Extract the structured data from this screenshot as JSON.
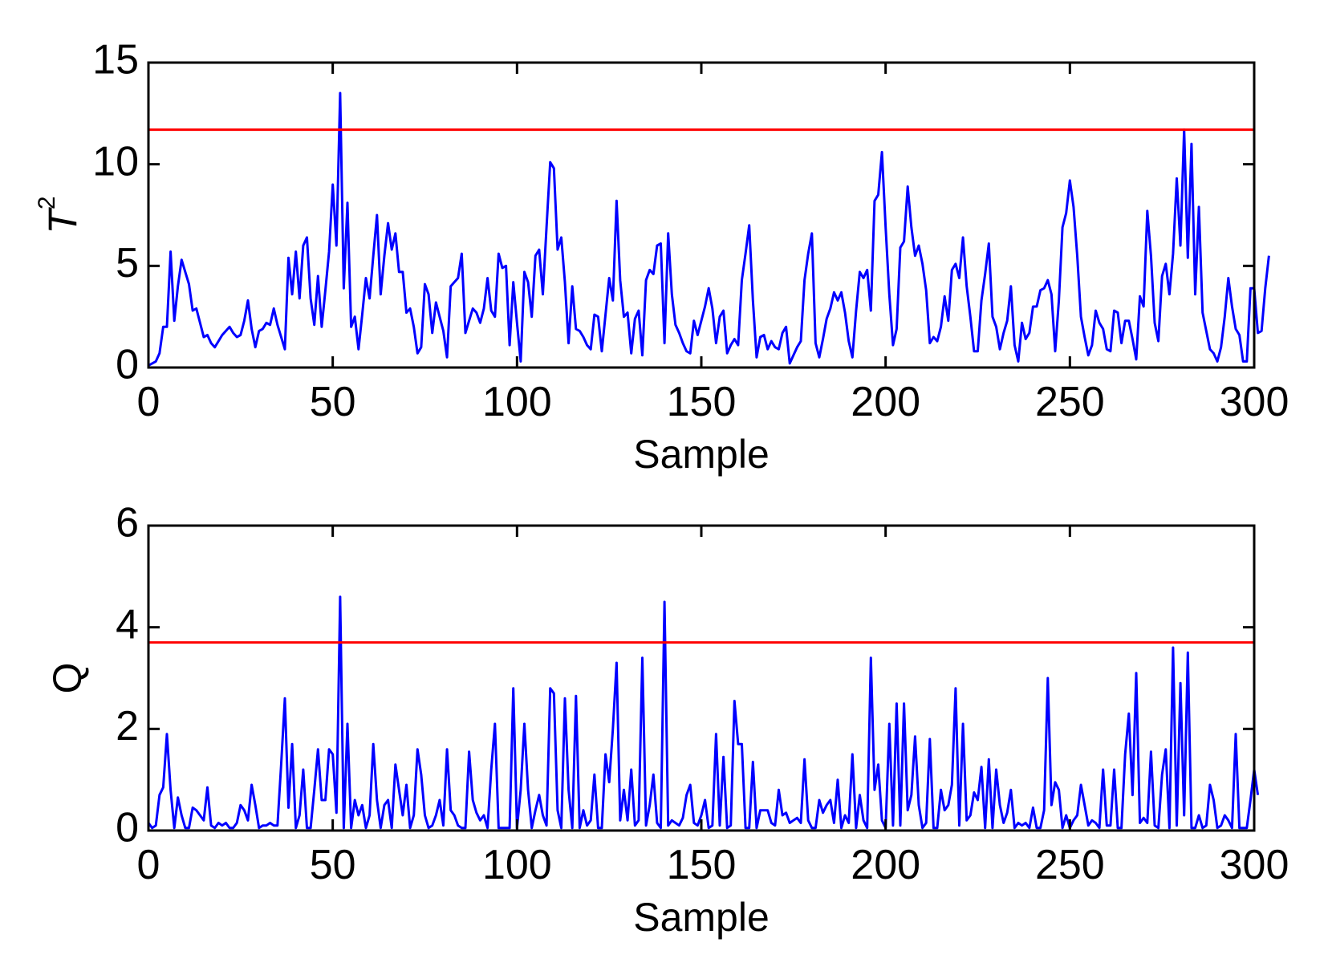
{
  "chart_data": [
    {
      "type": "line",
      "ylabel": "T",
      "ylabel_superscript": "2",
      "xlabel": "Sample",
      "xlim": [
        0,
        300
      ],
      "ylim": [
        0,
        15
      ],
      "xticks": [
        0,
        50,
        100,
        150,
        200,
        250,
        300
      ],
      "yticks": [
        0,
        5,
        10,
        15
      ],
      "control_limit": 11.7,
      "colors": {
        "series": "#0000ff",
        "limit": "#ff0000"
      },
      "series": [
        {
          "name": "T2",
          "x_start": 0,
          "x_step": 1,
          "values": [
            0.1,
            0.2,
            0.3,
            0.7,
            2.0,
            2.0,
            5.7,
            2.3,
            4.0,
            5.3,
            4.7,
            4.1,
            2.8,
            2.9,
            2.2,
            1.5,
            1.6,
            1.2,
            1.0,
            1.3,
            1.6,
            1.8,
            2.0,
            1.7,
            1.5,
            1.6,
            2.3,
            3.3,
            1.9,
            1.0,
            1.8,
            1.9,
            2.2,
            2.1,
            2.9,
            2.1,
            1.5,
            0.9,
            5.4,
            3.6,
            5.7,
            3.4,
            6.0,
            6.4,
            3.4,
            2.1,
            4.5,
            2.0,
            3.8,
            5.7,
            9.0,
            6.0,
            13.5,
            3.9,
            8.1,
            2.0,
            2.5,
            0.9,
            2.6,
            4.4,
            3.4,
            5.5,
            7.5,
            3.6,
            5.5,
            7.1,
            5.8,
            6.6,
            4.7,
            4.7,
            2.7,
            2.9,
            2.0,
            0.7,
            1.0,
            4.1,
            3.6,
            1.7,
            3.2,
            2.5,
            1.8,
            0.5,
            4.0,
            4.2,
            4.4,
            5.6,
            1.7,
            2.3,
            2.9,
            2.7,
            2.2,
            2.9,
            4.4,
            2.8,
            2.5,
            5.6,
            4.9,
            5.0,
            1.1,
            4.2,
            2.2,
            0.3,
            4.7,
            4.2,
            2.5,
            5.5,
            5.8,
            3.6,
            6.9,
            10.1,
            9.8,
            5.8,
            6.4,
            4.2,
            1.2,
            4.0,
            1.9,
            1.8,
            1.5,
            1.1,
            0.9,
            2.6,
            2.5,
            0.8,
            2.6,
            4.4,
            3.3,
            8.2,
            4.3,
            2.5,
            2.7,
            0.7,
            2.4,
            2.8,
            0.6,
            4.3,
            4.8,
            4.6,
            6.0,
            6.1,
            1.2,
            6.6,
            3.6,
            2.1,
            1.7,
            1.2,
            0.8,
            0.7,
            2.3,
            1.6,
            2.3,
            3.0,
            3.9,
            2.9,
            1.2,
            2.5,
            2.8,
            0.7,
            1.1,
            1.4,
            1.1,
            4.3,
            5.6,
            7.0,
            3.3,
            0.5,
            1.5,
            1.6,
            0.9,
            1.3,
            1.0,
            0.9,
            1.7,
            2.0,
            0.2,
            0.6,
            1.0,
            1.3,
            4.3,
            5.6,
            6.6,
            1.2,
            0.5,
            1.4,
            2.4,
            2.9,
            3.7,
            3.3,
            3.7,
            2.7,
            1.3,
            0.5,
            2.8,
            4.7,
            4.4,
            4.8,
            2.8,
            8.2,
            8.5,
            10.6,
            6.9,
            3.6,
            1.1,
            1.9,
            5.9,
            6.2,
            8.9,
            6.9,
            5.5,
            6.0,
            5.1,
            3.8,
            1.2,
            1.5,
            1.3,
            2.0,
            3.5,
            2.3,
            4.8,
            5.1,
            4.4,
            6.4,
            4.0,
            2.5,
            0.8,
            0.8,
            3.3,
            4.6,
            6.1,
            2.5,
            2.0,
            0.9,
            1.7,
            2.3,
            4.0,
            1.1,
            0.3,
            2.2,
            1.4,
            1.7,
            3.0,
            3.0,
            3.8,
            3.9,
            4.3,
            3.6,
            0.8,
            3.3,
            6.9,
            7.6,
            9.2,
            7.9,
            5.5,
            2.5,
            1.5,
            0.6,
            1.1,
            2.8,
            2.2,
            1.9,
            0.9,
            0.8,
            2.8,
            2.7,
            1.2,
            2.3,
            2.3,
            1.4,
            0.4,
            3.5,
            3.0,
            7.7,
            5.5,
            2.2,
            1.3,
            4.5,
            5.1,
            3.6,
            5.6,
            9.3,
            6.0,
            11.7,
            5.4,
            11.0,
            3.6,
            7.9,
            2.7,
            1.8,
            0.9,
            0.7,
            0.3,
            1.0,
            2.5,
            4.4,
            3.0,
            1.9,
            1.6,
            0.3,
            0.3,
            3.9,
            3.9,
            1.7,
            1.8,
            3.9,
            5.5
          ]
        }
      ]
    },
    {
      "type": "line",
      "ylabel": "Q",
      "xlabel": "Sample",
      "xlim": [
        0,
        300
      ],
      "ylim": [
        0,
        6
      ],
      "xticks": [
        0,
        50,
        100,
        150,
        200,
        250,
        300
      ],
      "yticks": [
        0,
        2,
        4,
        6
      ],
      "control_limit": 3.7,
      "colors": {
        "series": "#0000ff",
        "limit": "#ff0000"
      },
      "series": [
        {
          "name": "Q",
          "x_start": 0,
          "x_step": 1,
          "values": [
            0.15,
            0.05,
            0.1,
            0.7,
            0.85,
            1.9,
            0.8,
            0.05,
            0.65,
            0.3,
            0.05,
            0.05,
            0.45,
            0.4,
            0.3,
            0.2,
            0.85,
            0.1,
            0.05,
            0.15,
            0.1,
            0.15,
            0.05,
            0.05,
            0.15,
            0.5,
            0.4,
            0.2,
            0.9,
            0.5,
            0.05,
            0.1,
            0.1,
            0.15,
            0.1,
            0.1,
            1.3,
            2.6,
            0.45,
            1.7,
            0.05,
            0.3,
            1.2,
            0.05,
            0.05,
            0.8,
            1.6,
            0.6,
            0.6,
            1.6,
            1.5,
            0.35,
            4.6,
            0.05,
            2.1,
            0.05,
            0.6,
            0.3,
            0.5,
            0.05,
            0.3,
            1.7,
            0.6,
            0.05,
            0.5,
            0.6,
            0.05,
            1.3,
            0.8,
            0.3,
            0.9,
            0.05,
            0.3,
            1.6,
            1.1,
            0.3,
            0.05,
            0.1,
            0.3,
            0.6,
            0.1,
            1.6,
            0.4,
            0.3,
            0.1,
            0.05,
            0.05,
            1.55,
            0.6,
            0.35,
            0.2,
            0.3,
            0.05,
            1.2,
            2.1,
            0.05,
            0.05,
            0.05,
            0.05,
            2.8,
            0.05,
            0.8,
            2.1,
            0.8,
            0.05,
            0.4,
            0.7,
            0.3,
            0.1,
            2.8,
            2.7,
            0.4,
            0.05,
            2.6,
            0.8,
            0.05,
            2.65,
            0.05,
            0.4,
            0.1,
            0.2,
            1.1,
            0.05,
            0.05,
            1.5,
            0.95,
            2.0,
            3.3,
            0.2,
            0.8,
            0.2,
            1.2,
            0.1,
            0.2,
            3.4,
            0.1,
            0.5,
            1.1,
            0.15,
            0.05,
            4.5,
            0.1,
            0.2,
            0.15,
            0.1,
            0.25,
            0.7,
            0.9,
            0.15,
            0.1,
            0.3,
            0.6,
            0.05,
            0.1,
            1.9,
            0.1,
            1.45,
            0.05,
            0.1,
            2.55,
            1.7,
            1.7,
            0.05,
            0.05,
            1.35,
            0.05,
            0.4,
            0.4,
            0.4,
            0.15,
            0.1,
            0.8,
            0.3,
            0.35,
            0.15,
            0.2,
            0.25,
            0.15,
            1.4,
            0.2,
            0.05,
            0.05,
            0.6,
            0.35,
            0.5,
            0.6,
            0.15,
            1.0,
            0.05,
            0.3,
            0.15,
            1.5,
            0.05,
            0.7,
            0.2,
            0.05,
            3.4,
            0.8,
            1.3,
            0.2,
            0.05,
            2.1,
            0.1,
            2.5,
            0.1,
            2.5,
            0.4,
            0.7,
            1.85,
            0.5,
            0.05,
            0.15,
            1.8,
            0.05,
            0.05,
            0.8,
            0.4,
            0.5,
            0.9,
            2.8,
            0.1,
            2.1,
            0.2,
            0.3,
            0.75,
            0.6,
            1.25,
            0.05,
            1.4,
            0.05,
            1.2,
            0.5,
            0.15,
            0.35,
            0.8,
            0.05,
            0.15,
            0.1,
            0.15,
            0.05,
            0.45,
            0.05,
            0.05,
            0.4,
            3.0,
            0.5,
            0.95,
            0.8,
            0.05,
            0.3,
            0.05,
            0.2,
            0.3,
            0.9,
            0.5,
            0.1,
            0.2,
            0.15,
            0.05,
            1.2,
            0.1,
            0.1,
            1.2,
            0.05,
            0.05,
            1.5,
            2.3,
            0.7,
            3.1,
            0.15,
            0.25,
            0.15,
            1.55,
            0.1,
            0.05,
            1.1,
            1.6,
            0.05,
            3.6,
            0.1,
            2.9,
            0.3,
            3.5,
            0.05,
            0.05,
            0.3,
            0.05,
            0.1,
            0.9,
            0.6,
            0.05,
            0.1,
            0.3,
            0.2,
            0.05,
            1.9,
            0.05,
            0.05,
            0.05,
            0.6,
            1.2,
            0.7
          ]
        }
      ]
    }
  ]
}
